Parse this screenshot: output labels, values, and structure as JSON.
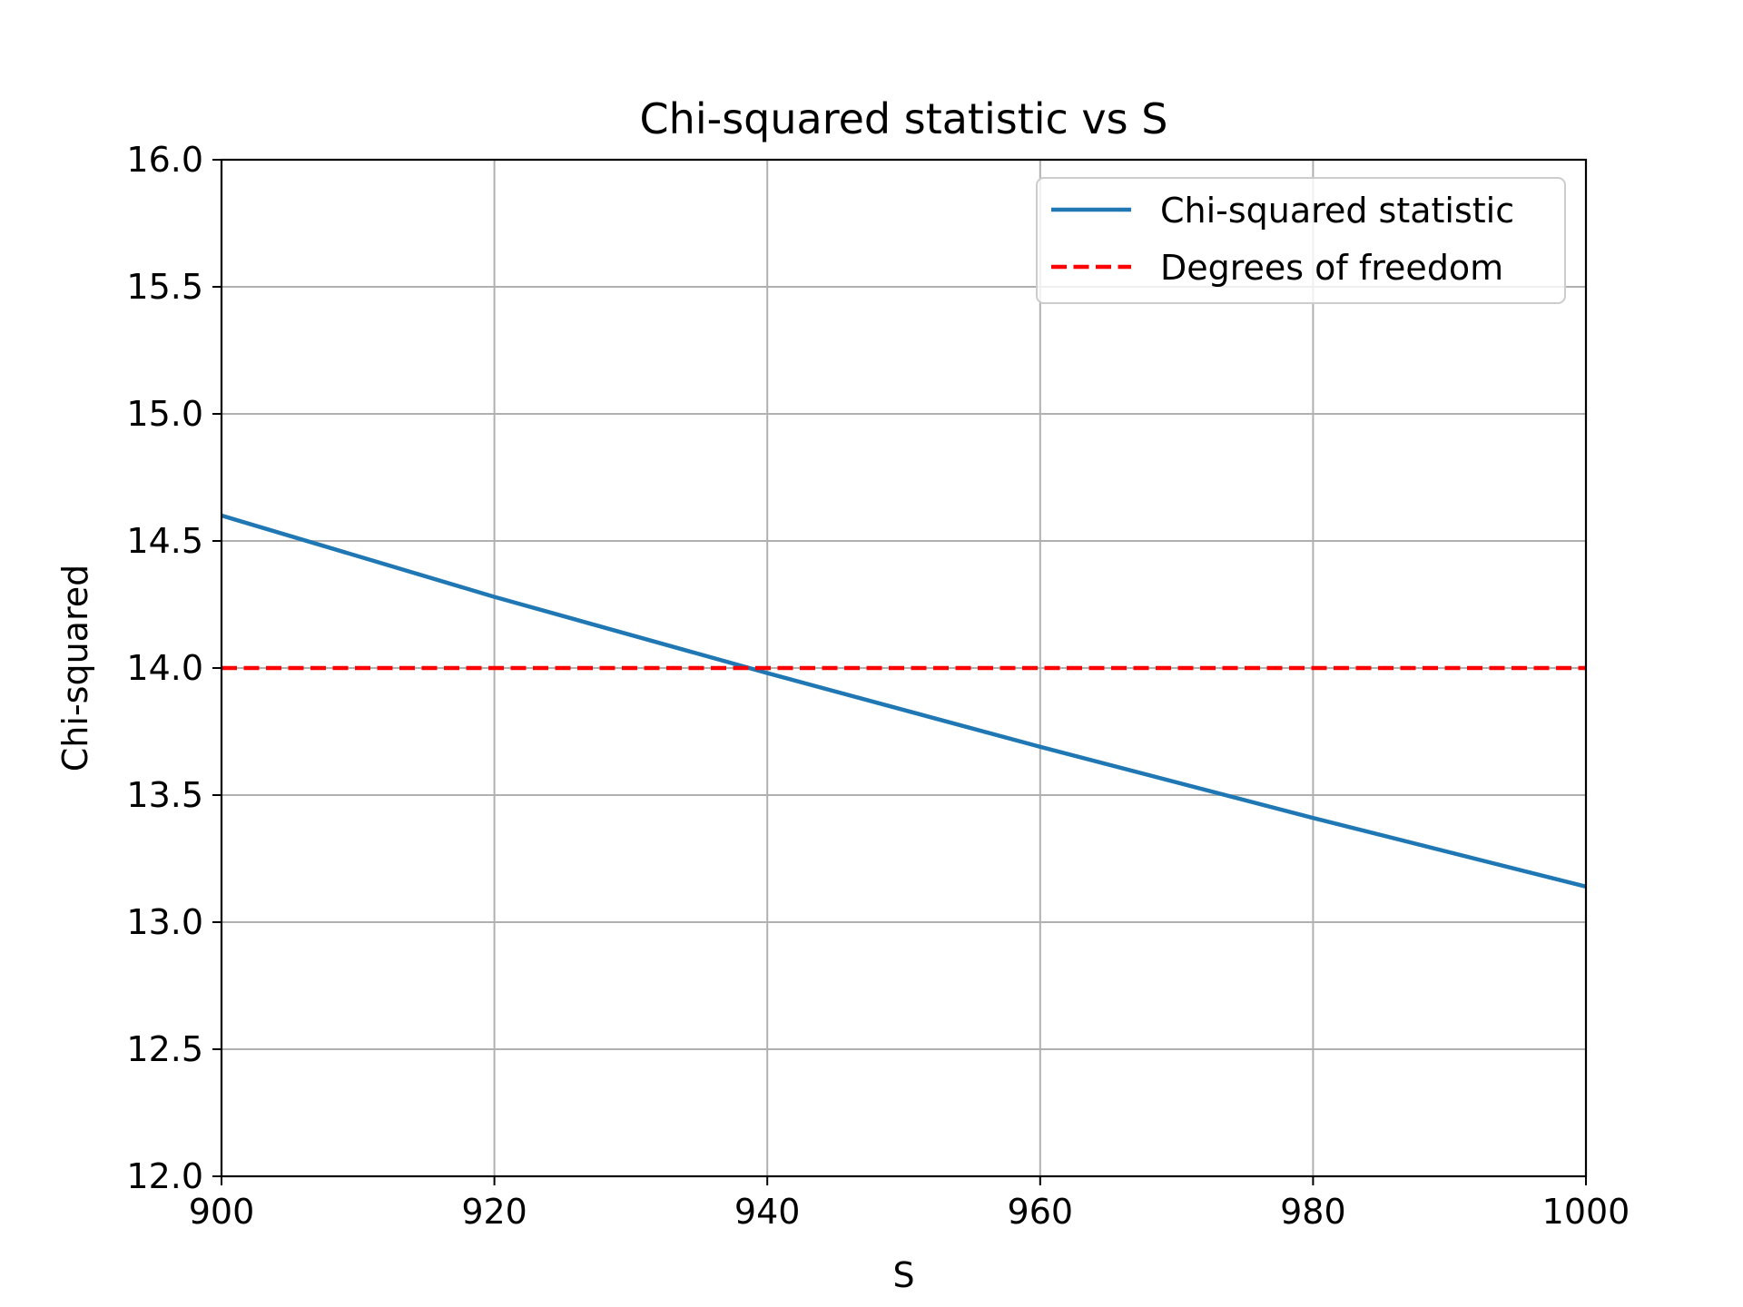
{
  "chart_data": {
    "type": "line",
    "title": "Chi-squared statistic vs S",
    "xlabel": "S",
    "ylabel": "Chi-squared",
    "xlim": [
      900,
      1000
    ],
    "ylim": [
      12.0,
      16.0
    ],
    "x_ticks": [
      900,
      920,
      940,
      960,
      980,
      1000
    ],
    "x_tick_labels": [
      "900",
      "920",
      "940",
      "960",
      "980",
      "1000"
    ],
    "y_ticks": [
      12.0,
      12.5,
      13.0,
      13.5,
      14.0,
      14.5,
      15.0,
      15.5,
      16.0
    ],
    "y_tick_labels": [
      "12.0",
      "12.5",
      "13.0",
      "13.5",
      "14.0",
      "14.5",
      "15.0",
      "15.5",
      "16.0"
    ],
    "grid": true,
    "legend_position": "top-right",
    "series": [
      {
        "name": "Chi-squared statistic",
        "style": "solid",
        "color": "#1f77b4",
        "x": [
          900,
          920,
          940,
          960,
          980,
          1000
        ],
        "y": [
          14.6,
          14.28,
          13.98,
          13.69,
          13.41,
          13.14
        ]
      },
      {
        "name": "Degrees of freedom",
        "style": "dashed",
        "color": "#ff0000",
        "x": [
          900,
          1000
        ],
        "y": [
          14.0,
          14.0
        ]
      }
    ]
  }
}
